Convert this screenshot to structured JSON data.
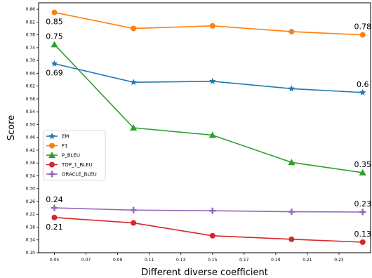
{
  "chart_data": {
    "type": "line",
    "xlabel": "Different diverse coefficient",
    "ylabel": "Score",
    "xlim": [
      0.04,
      0.25
    ],
    "ylim": [
      0.1,
      0.88
    ],
    "x_ticks": [
      "0.05",
      "0.07",
      "0.09",
      "0.11",
      "0.13",
      "0.15",
      "0.17",
      "0.19",
      "0.21",
      "0.23"
    ],
    "y_ticks": [
      "0.10",
      "0.14",
      "0.18",
      "0.22",
      "0.26",
      "0.30",
      "0.34",
      "0.38",
      "0.42",
      "0.46",
      "0.50",
      "0.54",
      "0.58",
      "0.62",
      "0.66",
      "0.70",
      "0.74",
      "0.78",
      "0.82",
      "0.86"
    ],
    "x": [
      0.05,
      0.1,
      0.15,
      0.2,
      0.245
    ],
    "series": [
      {
        "name": "EM",
        "color": "#1f77b4",
        "marker": "star",
        "values": [
          0.69,
          0.632,
          0.635,
          0.612,
          0.6
        ],
        "labels": [
          {
            "i": 0,
            "text": "0.69",
            "pos": "below"
          },
          {
            "i": 4,
            "text": "0.6",
            "pos": "above"
          }
        ]
      },
      {
        "name": "F1",
        "color": "#ff7f0e",
        "marker": "circle",
        "values": [
          0.85,
          0.8,
          0.808,
          0.79,
          0.78
        ],
        "labels": [
          {
            "i": 0,
            "text": "0.85",
            "pos": "below"
          },
          {
            "i": 4,
            "text": "0.78",
            "pos": "above"
          }
        ]
      },
      {
        "name": "P_BLEU",
        "color": "#2ca02c",
        "marker": "triangle",
        "values": [
          0.75,
          0.49,
          0.467,
          0.382,
          0.35
        ],
        "labels": [
          {
            "i": 0,
            "text": "0.75",
            "pos": "above"
          },
          {
            "i": 4,
            "text": "0.35",
            "pos": "above"
          }
        ]
      },
      {
        "name": "TOP_1_BLEU",
        "color": "#d62728",
        "marker": "circle",
        "values": [
          0.21,
          0.193,
          0.153,
          0.142,
          0.133
        ],
        "labels": [
          {
            "i": 0,
            "text": "0.21",
            "pos": "below"
          },
          {
            "i": 4,
            "text": "0.13",
            "pos": "above"
          }
        ]
      },
      {
        "name": "ORACLE_BLEU",
        "color": "#9467bd",
        "marker": "plus",
        "values": [
          0.24,
          0.233,
          0.231,
          0.228,
          0.227
        ],
        "labels": [
          {
            "i": 0,
            "text": "0.24",
            "pos": "above"
          },
          {
            "i": 4,
            "text": "0.23",
            "pos": "above"
          }
        ]
      }
    ],
    "legend_position": "center-left",
    "grid": false
  }
}
